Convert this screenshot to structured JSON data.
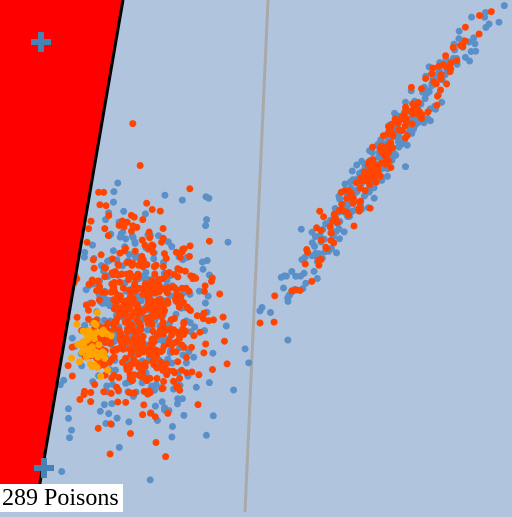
{
  "scene": {
    "background_color": "#b0c4de",
    "red_zone_color": "#ff0000",
    "boundary_line_color": "#000000",
    "divider_line_color": "#a9a9a9",
    "point_colors": {
      "blue": "#5a8fc8",
      "orange_red": "#ff4500",
      "gold": "#ffa500"
    },
    "markers": [
      {
        "name": "plus-marker-top",
        "shape": "plus-icon",
        "color": "#4682b4"
      },
      {
        "name": "plus-marker-bottom",
        "shape": "plus-icon",
        "color": "#4682b4"
      }
    ]
  },
  "status": {
    "poisons_label": "289 Poisons"
  }
}
